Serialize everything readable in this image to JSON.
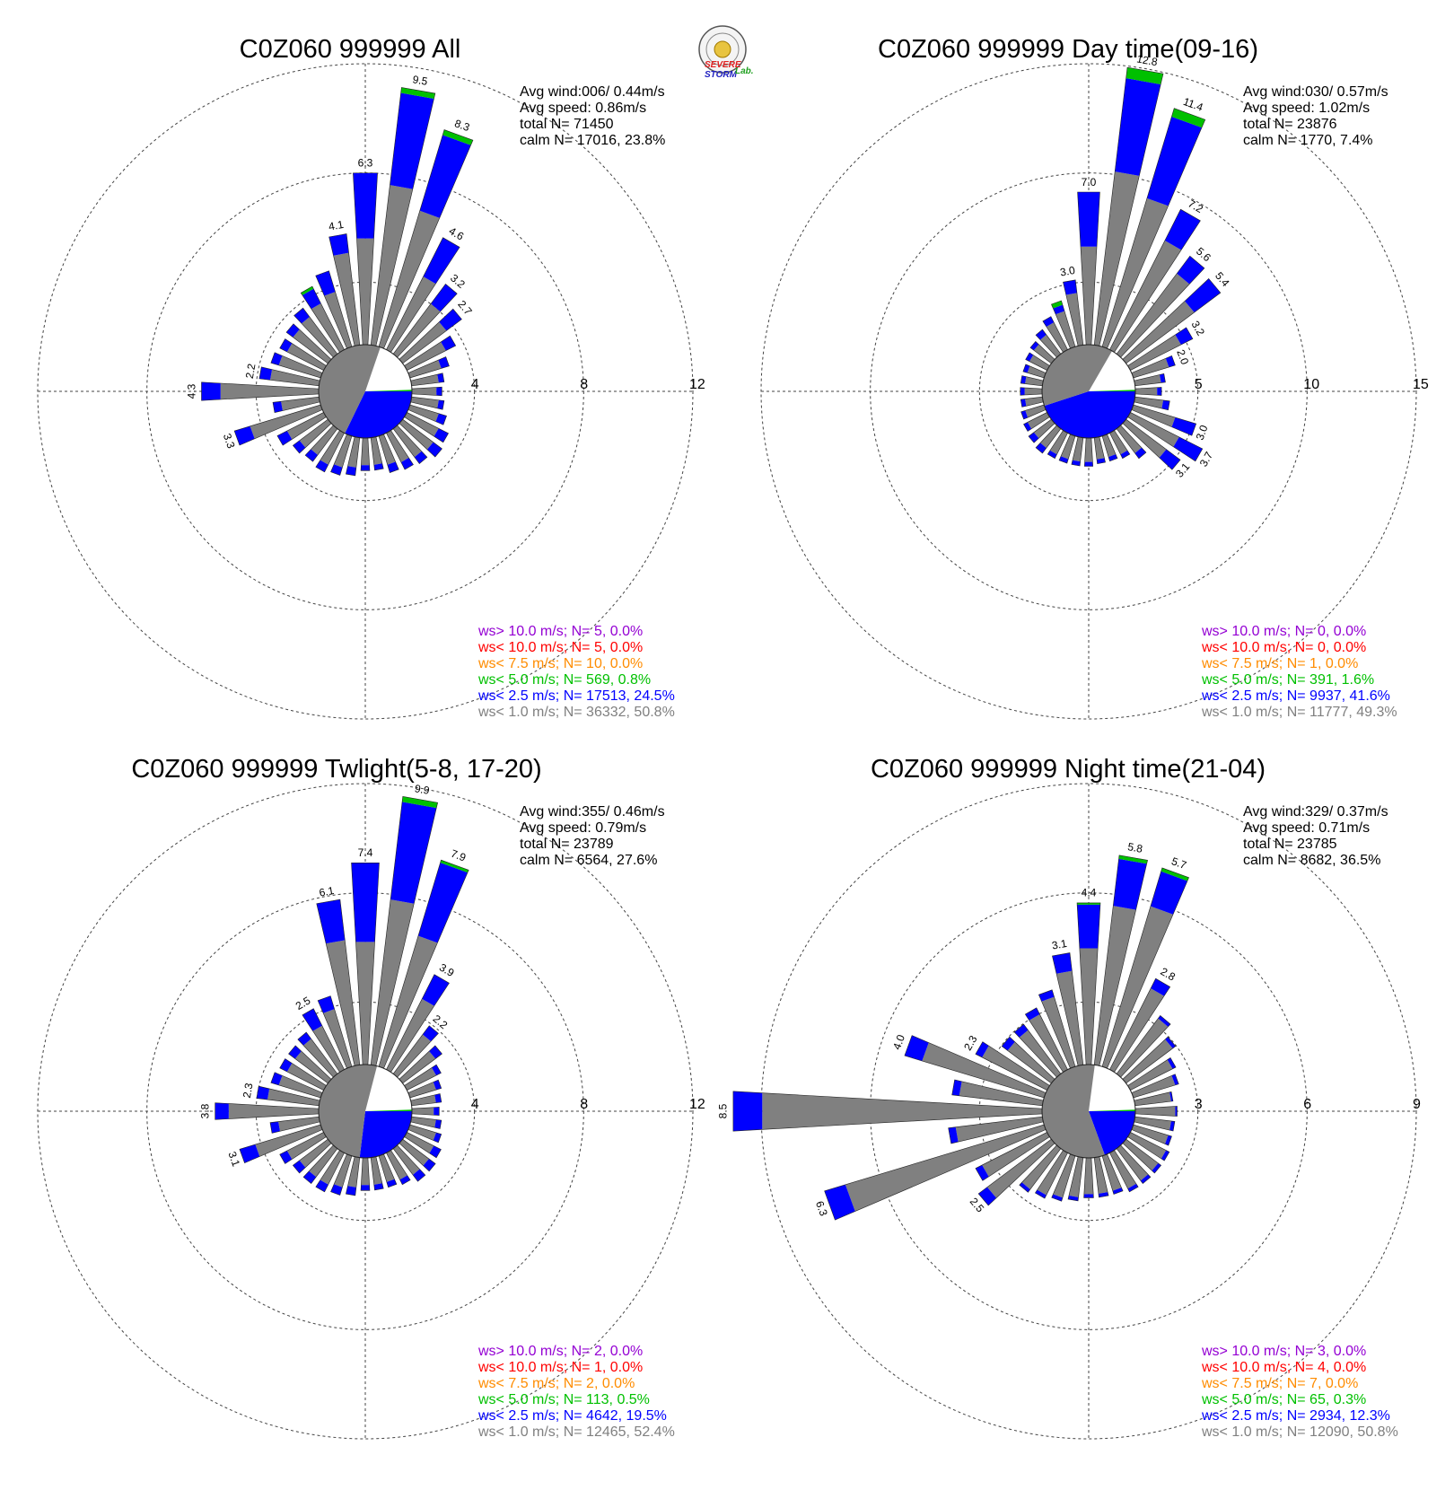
{
  "logo": {
    "line1": "SEVERE",
    "line2": "STORM",
    "line3": "Lab."
  },
  "colors": {
    "ws_gt10": "#9400d3",
    "ws_lt10": "#ff0000",
    "ws_lt75": "#ff8c00",
    "ws_lt5": "#00c000",
    "ws_lt25": "#0000ff",
    "ws_lt1": "#808080"
  },
  "chart_data": [
    {
      "type": "wind-rose",
      "title": "C0Z060 999999 All",
      "rmax": 12,
      "ticks": [
        "4",
        "8",
        "12"
      ],
      "stats": [
        "Avg wind:006/ 0.44m/s",
        "Avg speed: 0.86m/s",
        "total N=      71450",
        "calm N=  17016,  23.8%"
      ],
      "legend": [
        "ws> 10.0 m/s; N=     5,  0.0%",
        "ws< 10.0 m/s; N=     5,  0.0%",
        "ws<  7.5 m/s; N=    10,  0.0%",
        "ws<  5.0 m/s; N=   569,  0.8%",
        "ws<  2.5 m/s; N= 17513, 24.5%",
        "ws<  1.0 m/s; N= 36332, 50.8%"
      ],
      "direction_labels": [
        {
          "dir": 0,
          "label": "6.3"
        },
        {
          "dir": 10,
          "label": "9.5"
        },
        {
          "dir": 20,
          "label": "8.3"
        },
        {
          "dir": 30,
          "label": "4.6"
        },
        {
          "dir": 40,
          "label": "3.2"
        },
        {
          "dir": 50,
          "label": "2.7"
        },
        {
          "dir": 250,
          "label": "3.3"
        },
        {
          "dir": 270,
          "label": "4.3"
        },
        {
          "dir": 280,
          "label": "2.2"
        },
        {
          "dir": 350,
          "label": "4.1"
        }
      ],
      "sectors": [
        {
          "dir": 0,
          "s1": 3.9,
          "s2": 2.4
        },
        {
          "dir": 10,
          "s1": 5.9,
          "s2": 3.4,
          "s3": 0.2
        },
        {
          "dir": 20,
          "s1": 5.2,
          "s2": 2.9,
          "s3": 0.2
        },
        {
          "dir": 30,
          "s1": 3.0,
          "s2": 1.6
        },
        {
          "dir": 40,
          "s1": 2.3,
          "s2": 0.9
        },
        {
          "dir": 50,
          "s1": 2.0,
          "s2": 0.7
        },
        {
          "dir": 60,
          "s1": 1.6,
          "s2": 0.4
        },
        {
          "dir": 70,
          "s1": 1.2,
          "s2": 0.3
        },
        {
          "dir": 80,
          "s1": 1.0,
          "s2": 0.2
        },
        {
          "dir": 90,
          "s1": 0.9,
          "s2": 0.2
        },
        {
          "dir": 100,
          "s1": 1.0,
          "s2": 0.2
        },
        {
          "dir": 110,
          "s1": 1.1,
          "s2": 0.3
        },
        {
          "dir": 120,
          "s1": 1.3,
          "s2": 0.4
        },
        {
          "dir": 130,
          "s1": 1.4,
          "s2": 0.4
        },
        {
          "dir": 140,
          "s1": 1.3,
          "s2": 0.3
        },
        {
          "dir": 150,
          "s1": 1.2,
          "s2": 0.3
        },
        {
          "dir": 160,
          "s1": 1.1,
          "s2": 0.3
        },
        {
          "dir": 170,
          "s1": 1.0,
          "s2": 0.2
        },
        {
          "dir": 180,
          "s1": 1.0,
          "s2": 0.2
        },
        {
          "dir": 190,
          "s1": 1.1,
          "s2": 0.3
        },
        {
          "dir": 200,
          "s1": 1.2,
          "s2": 0.3
        },
        {
          "dir": 210,
          "s1": 1.3,
          "s2": 0.3
        },
        {
          "dir": 220,
          "s1": 1.2,
          "s2": 0.3
        },
        {
          "dir": 230,
          "s1": 1.3,
          "s2": 0.3
        },
        {
          "dir": 240,
          "s1": 1.5,
          "s2": 0.4
        },
        {
          "dir": 250,
          "s1": 2.7,
          "s2": 0.6
        },
        {
          "dir": 260,
          "s1": 1.4,
          "s2": 0.3
        },
        {
          "dir": 270,
          "s1": 3.6,
          "s2": 0.7
        },
        {
          "dir": 280,
          "s1": 1.8,
          "s2": 0.4
        },
        {
          "dir": 290,
          "s1": 1.6,
          "s2": 0.3
        },
        {
          "dir": 300,
          "s1": 1.5,
          "s2": 0.3
        },
        {
          "dir": 310,
          "s1": 1.6,
          "s2": 0.3
        },
        {
          "dir": 320,
          "s1": 1.7,
          "s2": 0.4
        },
        {
          "dir": 330,
          "s1": 1.9,
          "s2": 0.6,
          "s3": 0.1
        },
        {
          "dir": 340,
          "s1": 2.1,
          "s2": 0.8
        },
        {
          "dir": 350,
          "s1": 3.4,
          "s2": 0.7
        }
      ]
    },
    {
      "type": "wind-rose",
      "title": "C0Z060 999999 Day time(09-16)",
      "rmax": 15,
      "ticks": [
        "5",
        "10",
        "15"
      ],
      "stats": [
        "Avg wind:030/ 0.57m/s",
        "Avg speed: 1.02m/s",
        "total N=      23876",
        "calm N=   1770,   7.4%"
      ],
      "legend": [
        "ws> 10.0 m/s; N=     0,  0.0%",
        "ws< 10.0 m/s; N=     0,  0.0%",
        "ws<  7.5 m/s; N=     1,  0.0%",
        "ws<  5.0 m/s; N=   391,  1.6%",
        "ws<  2.5 m/s; N=  9937, 41.6%",
        "ws<  1.0 m/s; N= 11777, 49.3%"
      ],
      "direction_labels": [
        {
          "dir": 0,
          "label": "7.0"
        },
        {
          "dir": 10,
          "label": "12.8"
        },
        {
          "dir": 20,
          "label": "11.4"
        },
        {
          "dir": 30,
          "label": "7.2"
        },
        {
          "dir": 40,
          "label": "5.6"
        },
        {
          "dir": 50,
          "label": "5.4"
        },
        {
          "dir": 60,
          "label": "3.2"
        },
        {
          "dir": 70,
          "label": "2.0"
        },
        {
          "dir": 110,
          "label": "3.0"
        },
        {
          "dir": 120,
          "label": "3.7"
        },
        {
          "dir": 130,
          "label": "3.1"
        },
        {
          "dir": 350,
          "label": "3.0"
        }
      ],
      "sectors": [
        {
          "dir": 0,
          "s1": 4.5,
          "s2": 2.5
        },
        {
          "dir": 10,
          "s1": 8.0,
          "s2": 4.3,
          "s3": 0.5
        },
        {
          "dir": 20,
          "s1": 7.1,
          "s2": 3.9,
          "s3": 0.4
        },
        {
          "dir": 30,
          "s1": 5.6,
          "s2": 1.6
        },
        {
          "dir": 40,
          "s1": 4.6,
          "s2": 1.0
        },
        {
          "dir": 50,
          "s1": 3.9,
          "s2": 1.5
        },
        {
          "dir": 60,
          "s1": 2.6,
          "s2": 0.6
        },
        {
          "dir": 70,
          "s1": 1.7,
          "s2": 0.3
        },
        {
          "dir": 80,
          "s1": 1.2,
          "s2": 0.2
        },
        {
          "dir": 90,
          "s1": 1.0,
          "s2": 0.2
        },
        {
          "dir": 100,
          "s1": 1.3,
          "s2": 0.3
        },
        {
          "dir": 110,
          "s1": 2.0,
          "s2": 1.0
        },
        {
          "dir": 120,
          "s1": 2.5,
          "s2": 1.2
        },
        {
          "dir": 130,
          "s1": 2.3,
          "s2": 0.8
        },
        {
          "dir": 140,
          "s1": 1.4,
          "s2": 0.3
        },
        {
          "dir": 150,
          "s1": 1.1,
          "s2": 0.2
        },
        {
          "dir": 160,
          "s1": 1.0,
          "s2": 0.2
        },
        {
          "dir": 170,
          "s1": 1.0,
          "s2": 0.2
        },
        {
          "dir": 180,
          "s1": 1.1,
          "s2": 0.2
        },
        {
          "dir": 190,
          "s1": 1.1,
          "s2": 0.2
        },
        {
          "dir": 200,
          "s1": 1.1,
          "s2": 0.2
        },
        {
          "dir": 210,
          "s1": 1.1,
          "s2": 0.2
        },
        {
          "dir": 220,
          "s1": 1.1,
          "s2": 0.3
        },
        {
          "dir": 230,
          "s1": 1.0,
          "s2": 0.3
        },
        {
          "dir": 240,
          "s1": 1.0,
          "s2": 0.2
        },
        {
          "dir": 250,
          "s1": 0.9,
          "s2": 0.2
        },
        {
          "dir": 260,
          "s1": 0.8,
          "s2": 0.2
        },
        {
          "dir": 270,
          "s1": 0.8,
          "s2": 0.2
        },
        {
          "dir": 280,
          "s1": 0.8,
          "s2": 0.2
        },
        {
          "dir": 290,
          "s1": 0.8,
          "s2": 0.2
        },
        {
          "dir": 300,
          "s1": 0.9,
          "s2": 0.2
        },
        {
          "dir": 310,
          "s1": 1.0,
          "s2": 0.2
        },
        {
          "dir": 320,
          "s1": 1.1,
          "s2": 0.3
        },
        {
          "dir": 330,
          "s1": 1.4,
          "s2": 0.3
        },
        {
          "dir": 340,
          "s1": 1.7,
          "s2": 0.3,
          "s3": 0.2
        },
        {
          "dir": 350,
          "s1": 2.4,
          "s2": 0.6
        }
      ]
    },
    {
      "type": "wind-rose",
      "title": "C0Z060 999999 Twlight(5-8, 17-20)",
      "rmax": 12,
      "ticks": [
        "4",
        "8",
        "12"
      ],
      "stats": [
        "Avg wind:355/ 0.46m/s",
        "Avg speed: 0.79m/s",
        "total N=      23789",
        "calm N=   6564,  27.6%"
      ],
      "legend": [
        "ws> 10.0 m/s; N=     2,  0.0%",
        "ws< 10.0 m/s; N=     1,  0.0%",
        "ws<  7.5 m/s; N=     2,  0.0%",
        "ws<  5.0 m/s; N=   113,  0.5%",
        "ws<  2.5 m/s; N=  4642, 19.5%",
        "ws<  1.0 m/s; N= 12465, 52.4%"
      ],
      "direction_labels": [
        {
          "dir": 0,
          "label": "7.4"
        },
        {
          "dir": 10,
          "label": "9.9"
        },
        {
          "dir": 20,
          "label": "7.9"
        },
        {
          "dir": 30,
          "label": "3.9"
        },
        {
          "dir": 40,
          "label": "2.2"
        },
        {
          "dir": 250,
          "label": "3.1"
        },
        {
          "dir": 270,
          "label": "3.8"
        },
        {
          "dir": 280,
          "label": "2.3"
        },
        {
          "dir": 330,
          "label": "2.5"
        },
        {
          "dir": 350,
          "label": "6.1"
        }
      ],
      "sectors": [
        {
          "dir": 0,
          "s1": 4.5,
          "s2": 2.9
        },
        {
          "dir": 10,
          "s1": 6.1,
          "s2": 3.6,
          "s3": 0.2
        },
        {
          "dir": 20,
          "s1": 5.0,
          "s2": 2.8,
          "s3": 0.1
        },
        {
          "dir": 30,
          "s1": 2.9,
          "s2": 1.0
        },
        {
          "dir": 40,
          "s1": 1.8,
          "s2": 0.4
        },
        {
          "dir": 50,
          "s1": 1.5,
          "s2": 0.3
        },
        {
          "dir": 60,
          "s1": 1.2,
          "s2": 0.2
        },
        {
          "dir": 70,
          "s1": 1.0,
          "s2": 0.2
        },
        {
          "dir": 80,
          "s1": 0.9,
          "s2": 0.2
        },
        {
          "dir": 90,
          "s1": 0.8,
          "s2": 0.2
        },
        {
          "dir": 100,
          "s1": 0.9,
          "s2": 0.2
        },
        {
          "dir": 110,
          "s1": 1.0,
          "s2": 0.2
        },
        {
          "dir": 120,
          "s1": 1.1,
          "s2": 0.3
        },
        {
          "dir": 130,
          "s1": 1.2,
          "s2": 0.3
        },
        {
          "dir": 140,
          "s1": 1.2,
          "s2": 0.3
        },
        {
          "dir": 150,
          "s1": 1.1,
          "s2": 0.2
        },
        {
          "dir": 160,
          "s1": 1.0,
          "s2": 0.2
        },
        {
          "dir": 170,
          "s1": 1.0,
          "s2": 0.2
        },
        {
          "dir": 180,
          "s1": 1.0,
          "s2": 0.2
        },
        {
          "dir": 190,
          "s1": 1.1,
          "s2": 0.3
        },
        {
          "dir": 200,
          "s1": 1.2,
          "s2": 0.3
        },
        {
          "dir": 210,
          "s1": 1.3,
          "s2": 0.3
        },
        {
          "dir": 220,
          "s1": 1.3,
          "s2": 0.3
        },
        {
          "dir": 230,
          "s1": 1.3,
          "s2": 0.3
        },
        {
          "dir": 240,
          "s1": 1.5,
          "s2": 0.3
        },
        {
          "dir": 250,
          "s1": 2.5,
          "s2": 0.6
        },
        {
          "dir": 260,
          "s1": 1.5,
          "s2": 0.3
        },
        {
          "dir": 270,
          "s1": 3.3,
          "s2": 0.5
        },
        {
          "dir": 280,
          "s1": 1.9,
          "s2": 0.4
        },
        {
          "dir": 290,
          "s1": 1.6,
          "s2": 0.3
        },
        {
          "dir": 300,
          "s1": 1.5,
          "s2": 0.3
        },
        {
          "dir": 310,
          "s1": 1.5,
          "s2": 0.3
        },
        {
          "dir": 320,
          "s1": 1.6,
          "s2": 0.3
        },
        {
          "dir": 330,
          "s1": 1.8,
          "s2": 0.7
        },
        {
          "dir": 340,
          "s1": 2.2,
          "s2": 0.5
        },
        {
          "dir": 350,
          "s1": 4.6,
          "s2": 1.5
        }
      ]
    },
    {
      "type": "wind-rose",
      "title": "C0Z060 999999 Night time(21-04)",
      "rmax": 9,
      "ticks": [
        "3",
        "6",
        "9"
      ],
      "stats": [
        "Avg wind:329/ 0.37m/s",
        "Avg speed: 0.71m/s",
        "total N=      23785",
        "calm N=   8682,  36.5%"
      ],
      "legend": [
        "ws> 10.0 m/s; N=     3,  0.0%",
        "ws< 10.0 m/s; N=     4,  0.0%",
        "ws<  7.5 m/s; N=     7,  0.0%",
        "ws<  5.0 m/s; N=    65,  0.3%",
        "ws<  2.5 m/s; N=  2934, 12.3%",
        "ws<  1.0 m/s; N= 12090, 50.8%"
      ],
      "direction_labels": [
        {
          "dir": 0,
          "label": "4.4"
        },
        {
          "dir": 10,
          "label": "5.8"
        },
        {
          "dir": 20,
          "label": "5.7"
        },
        {
          "dir": 30,
          "label": "2.8"
        },
        {
          "dir": 250,
          "label": "6.3"
        },
        {
          "dir": 270,
          "label": "8.5"
        },
        {
          "dir": 230,
          "label": "2.5"
        },
        {
          "dir": 290,
          "label": "4.0"
        },
        {
          "dir": 300,
          "label": "2.3"
        },
        {
          "dir": 350,
          "label": "3.1"
        }
      ],
      "sectors": [
        {
          "dir": 0,
          "s1": 3.2,
          "s2": 1.2,
          "s3": 0.05
        },
        {
          "dir": 10,
          "s1": 4.4,
          "s2": 1.3,
          "s3": 0.1
        },
        {
          "dir": 20,
          "s1": 4.6,
          "s2": 1.0,
          "s3": 0.1
        },
        {
          "dir": 30,
          "s1": 2.5,
          "s2": 0.3
        },
        {
          "dir": 40,
          "s1": 1.9,
          "s2": 0.1
        },
        {
          "dir": 50,
          "s1": 1.6,
          "s2": 0.1
        },
        {
          "dir": 60,
          "s1": 1.3,
          "s2": 0.1
        },
        {
          "dir": 70,
          "s1": 1.2,
          "s2": 0.1
        },
        {
          "dir": 80,
          "s1": 1.0,
          "s2": 0.05
        },
        {
          "dir": 90,
          "s1": 1.1,
          "s2": 0.05
        },
        {
          "dir": 100,
          "s1": 1.0,
          "s2": 0.1
        },
        {
          "dir": 110,
          "s1": 1.0,
          "s2": 0.1
        },
        {
          "dir": 120,
          "s1": 1.1,
          "s2": 0.1
        },
        {
          "dir": 130,
          "s1": 1.1,
          "s2": 0.1
        },
        {
          "dir": 140,
          "s1": 1.1,
          "s2": 0.1
        },
        {
          "dir": 150,
          "s1": 1.1,
          "s2": 0.1
        },
        {
          "dir": 160,
          "s1": 1.0,
          "s2": 0.1
        },
        {
          "dir": 170,
          "s1": 1.0,
          "s2": 0.1
        },
        {
          "dir": 180,
          "s1": 1.0,
          "s2": 0.1
        },
        {
          "dir": 190,
          "s1": 1.1,
          "s2": 0.1
        },
        {
          "dir": 200,
          "s1": 1.2,
          "s2": 0.1
        },
        {
          "dir": 210,
          "s1": 1.3,
          "s2": 0.1
        },
        {
          "dir": 220,
          "s1": 1.4,
          "s2": 0.1
        },
        {
          "dir": 230,
          "s1": 2.2,
          "s2": 0.3
        },
        {
          "dir": 240,
          "s1": 2.0,
          "s2": 0.2
        },
        {
          "dir": 250,
          "s1": 5.7,
          "s2": 0.6
        },
        {
          "dir": 260,
          "s1": 2.4,
          "s2": 0.2
        },
        {
          "dir": 270,
          "s1": 7.7,
          "s2": 0.8
        },
        {
          "dir": 280,
          "s1": 2.3,
          "s2": 0.2
        },
        {
          "dir": 290,
          "s1": 3.5,
          "s2": 0.5
        },
        {
          "dir": 300,
          "s1": 2.0,
          "s2": 0.2
        },
        {
          "dir": 310,
          "s1": 1.5,
          "s2": 0.2
        },
        {
          "dir": 320,
          "s1": 1.5,
          "s2": 0.2
        },
        {
          "dir": 330,
          "s1": 1.7,
          "s2": 0.2
        },
        {
          "dir": 340,
          "s1": 2.0,
          "s2": 0.2
        },
        {
          "dir": 350,
          "s1": 2.6,
          "s2": 0.5
        }
      ]
    }
  ]
}
